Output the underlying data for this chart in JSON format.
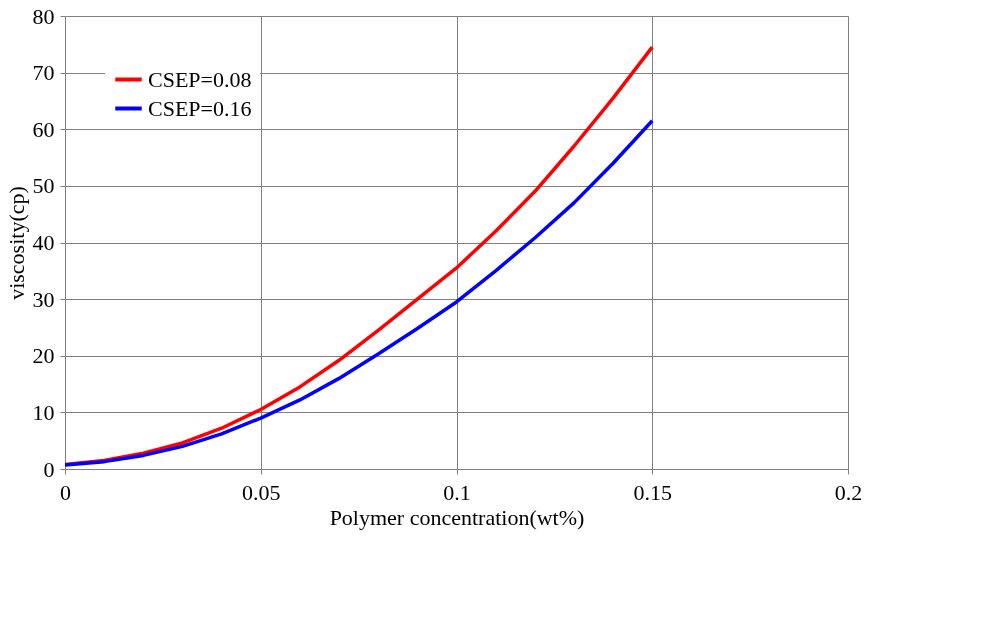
{
  "chart_data": {
    "type": "line",
    "xlabel": "Polymer concentration(wt%)",
    "ylabel": "viscosity(cp)",
    "x": [
      0,
      0.01,
      0.02,
      0.03,
      0.04,
      0.05,
      0.06,
      0.07,
      0.08,
      0.09,
      0.1,
      0.11,
      0.12,
      0.13,
      0.14,
      0.15
    ],
    "series": [
      {
        "name": "CSEP=0.08",
        "color": "#ff0000",
        "values": [
          0.8,
          1.5,
          2.8,
          4.6,
          7.2,
          10.5,
          14.5,
          19.2,
          24.5,
          30,
          35.5,
          42,
          49,
          57,
          65.5,
          74.5
        ]
      },
      {
        "name": "CSEP=0.16",
        "color": "#0000ff",
        "values": [
          0.7,
          1.3,
          2.4,
          4,
          6.2,
          9,
          12.2,
          16,
          20.3,
          24.8,
          29.5,
          35,
          40.8,
          47,
          54,
          61.5
        ]
      }
    ],
    "xlim": [
      0,
      0.2
    ],
    "xticks": [
      0,
      0.05,
      0.1,
      0.15,
      0.2
    ],
    "ylim": [
      0,
      80
    ],
    "yticks": [
      0,
      10,
      20,
      30,
      40,
      50,
      60,
      70,
      80
    ],
    "grid": true,
    "legend": "top left",
    "marker": "none",
    "line_style": "solid"
  }
}
